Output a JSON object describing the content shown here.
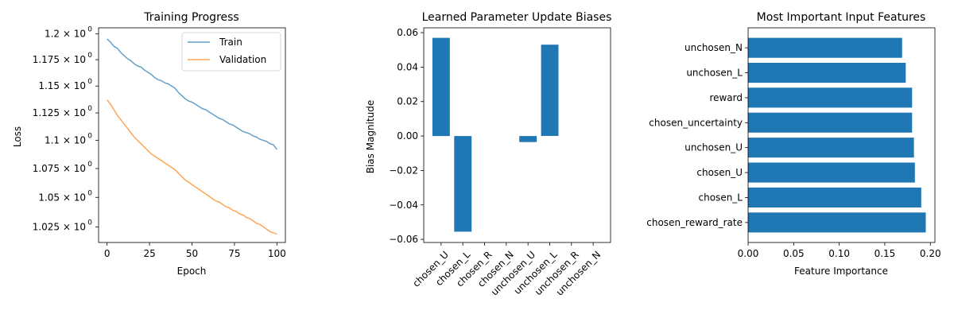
{
  "chart_data": [
    {
      "type": "line",
      "title": "Training Progress",
      "xlabel": "Epoch",
      "ylabel": "Loss",
      "yscale": "log",
      "xlim": [
        -5,
        105
      ],
      "ylim": [
        1.012,
        1.206
      ],
      "xticks": [
        0,
        25,
        50,
        75,
        100
      ],
      "xtick_labels": [
        "0",
        "25",
        "50",
        "75",
        "100"
      ],
      "yticks": [
        1.025,
        1.05,
        1.075,
        1.1,
        1.125,
        1.15,
        1.175,
        1.2
      ],
      "ytick_labels": [
        "1.025",
        "1.05",
        "1.075",
        "1.1",
        "1.125",
        "1.15",
        "1.175",
        "1.2"
      ],
      "legend_position": "top-right",
      "series": [
        {
          "name": "Train",
          "color": "#1f77b4",
          "x": [
            0,
            2,
            4,
            6,
            8,
            10,
            12,
            14,
            16,
            18,
            20,
            22,
            24,
            26,
            28,
            30,
            32,
            34,
            36,
            38,
            40,
            42,
            44,
            46,
            48,
            50,
            52,
            54,
            56,
            58,
            60,
            62,
            64,
            66,
            68,
            70,
            72,
            74,
            76,
            78,
            80,
            82,
            84,
            86,
            88,
            90,
            92,
            94,
            96,
            98,
            100
          ],
          "y": [
            1.195,
            1.192,
            1.188,
            1.186,
            1.182,
            1.179,
            1.176,
            1.174,
            1.171,
            1.169,
            1.168,
            1.165,
            1.163,
            1.161,
            1.158,
            1.156,
            1.155,
            1.153,
            1.152,
            1.15,
            1.148,
            1.144,
            1.141,
            1.138,
            1.136,
            1.135,
            1.133,
            1.131,
            1.129,
            1.128,
            1.126,
            1.124,
            1.122,
            1.12,
            1.119,
            1.117,
            1.115,
            1.114,
            1.112,
            1.11,
            1.108,
            1.107,
            1.106,
            1.104,
            1.103,
            1.101,
            1.1,
            1.099,
            1.097,
            1.096,
            1.092
          ]
        },
        {
          "name": "Validation",
          "color": "#ff7f0e",
          "x": [
            0,
            2,
            4,
            6,
            8,
            10,
            12,
            14,
            16,
            18,
            20,
            22,
            24,
            26,
            28,
            30,
            32,
            34,
            36,
            38,
            40,
            42,
            44,
            46,
            48,
            50,
            52,
            54,
            56,
            58,
            60,
            62,
            64,
            66,
            68,
            70,
            72,
            74,
            76,
            78,
            80,
            82,
            84,
            86,
            88,
            90,
            92,
            94,
            96,
            98,
            100
          ],
          "y": [
            1.137,
            1.133,
            1.128,
            1.123,
            1.119,
            1.115,
            1.111,
            1.107,
            1.103,
            1.1,
            1.097,
            1.094,
            1.091,
            1.088,
            1.086,
            1.084,
            1.082,
            1.08,
            1.078,
            1.076,
            1.074,
            1.071,
            1.068,
            1.065,
            1.063,
            1.061,
            1.059,
            1.057,
            1.055,
            1.053,
            1.051,
            1.049,
            1.047,
            1.046,
            1.044,
            1.042,
            1.041,
            1.039,
            1.038,
            1.036,
            1.035,
            1.033,
            1.032,
            1.03,
            1.028,
            1.027,
            1.025,
            1.023,
            1.021,
            1.02,
            1.019
          ]
        }
      ]
    },
    {
      "type": "bar",
      "title": "Learned Parameter Update Biases",
      "xlabel": "",
      "ylabel": "Bias Magnitude",
      "ylim": [
        -0.0618,
        0.0628
      ],
      "yticks": [
        -0.06,
        -0.04,
        -0.02,
        0.0,
        0.02,
        0.04,
        0.06
      ],
      "ytick_labels": [
        "−0.06",
        "−0.04",
        "−0.02",
        "0.00",
        "0.02",
        "0.04",
        "0.06"
      ],
      "color": "#1f77b4",
      "categories": [
        "chosen_U",
        "chosen_L",
        "chosen_R",
        "chosen_N",
        "unchosen_U",
        "unchosen_L",
        "unchosen_R",
        "unchosen_N"
      ],
      "values": [
        0.057,
        -0.0555,
        0.0,
        0.0,
        -0.0035,
        0.053,
        0.0,
        0.0
      ]
    },
    {
      "type": "bar",
      "orientation": "horizontal",
      "title": "Most Important Input Features",
      "xlabel": "Feature Importance",
      "ylabel": "",
      "xlim": [
        0,
        0.205
      ],
      "xticks": [
        0.0,
        0.05,
        0.1,
        0.15,
        0.2
      ],
      "xtick_labels": [
        "0.00",
        "0.05",
        "0.10",
        "0.15",
        "0.20"
      ],
      "color": "#1f77b4",
      "categories": [
        "chosen_reward_rate",
        "chosen_L",
        "chosen_U",
        "unchosen_U",
        "chosen_uncertainty",
        "reward",
        "unchosen_L",
        "unchosen_N"
      ],
      "values": [
        0.195,
        0.19,
        0.183,
        0.182,
        0.18,
        0.18,
        0.173,
        0.169
      ]
    }
  ]
}
